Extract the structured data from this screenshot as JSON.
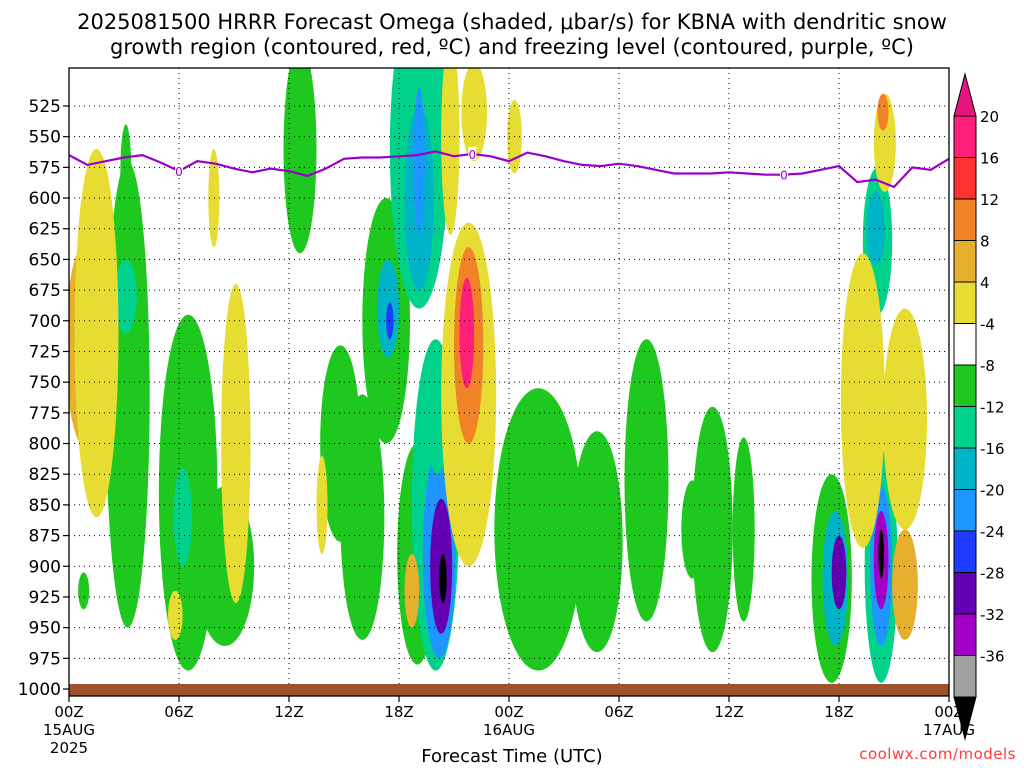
{
  "title_line1": "2025081500 HRRR Forecast Omega (shaded, μbar/s) for KBNA with dendritic snow",
  "title_line2": "growth region (contoured, red, ºC) and freezing level (contoured, purple, ºC)",
  "watermark": "coolwx.com/models",
  "chart_data": {
    "type": "heatmap",
    "xlabel": "Forecast Time (UTC)",
    "ylabel": "",
    "x_hours": [
      0,
      48
    ],
    "x_ticks": [
      {
        "h": 0,
        "label": "00Z",
        "sub": "15AUG",
        "sub2": "2025"
      },
      {
        "h": 6,
        "label": "06Z"
      },
      {
        "h": 12,
        "label": "12Z"
      },
      {
        "h": 18,
        "label": "18Z"
      },
      {
        "h": 24,
        "label": "00Z",
        "sub": "16AUG"
      },
      {
        "h": 30,
        "label": "06Z"
      },
      {
        "h": 36,
        "label": "12Z"
      },
      {
        "h": 42,
        "label": "18Z"
      },
      {
        "h": 48,
        "label": "00Z",
        "sub": "17AUG"
      }
    ],
    "y_levels_hPa": [
      525,
      550,
      575,
      600,
      625,
      650,
      675,
      700,
      725,
      750,
      775,
      800,
      825,
      850,
      875,
      900,
      925,
      950,
      975,
      1000
    ],
    "y_range_hPa": [
      1000,
      500
    ],
    "grid": true,
    "colorbar": {
      "labels": [
        "20",
        "16",
        "12",
        "8",
        "4",
        "-4",
        "-8",
        "-12",
        "-16",
        "-20",
        "-24",
        "-28",
        "-32",
        "-36"
      ],
      "colors": [
        "#ff1e78",
        "#ff3232",
        "#f08228",
        "#e6af2d",
        "#e6dc32",
        "#ffffff",
        "#1ec81e",
        "#00d28c",
        "#00b4c8",
        "#1e96ff",
        "#1e3cff",
        "#6400b4",
        "#a000c8",
        "#a0a0a0"
      ]
    },
    "freezing_level_label": "0",
    "freezing_level": {
      "hours": [
        0,
        1,
        2,
        3,
        4,
        5,
        6,
        7,
        8,
        9,
        10,
        11,
        12,
        13,
        14,
        15,
        16,
        17,
        18,
        19,
        20,
        21,
        22,
        23,
        24,
        25,
        26,
        27,
        28,
        29,
        30,
        31,
        32,
        33,
        34,
        35,
        36,
        37,
        38,
        39,
        40,
        41,
        42,
        43,
        44,
        45,
        46,
        47,
        48
      ],
      "hPa": [
        565,
        573,
        570,
        567,
        565,
        571,
        578,
        570,
        572,
        576,
        579,
        576,
        578,
        582,
        576,
        568,
        567,
        567,
        566,
        565,
        562,
        566,
        564,
        566,
        570,
        563,
        566,
        570,
        573,
        574,
        572,
        574,
        577,
        580,
        580,
        580,
        579,
        580,
        581,
        581,
        580,
        577,
        574,
        587,
        585,
        591,
        575,
        577,
        568
      ]
    },
    "ground_level_hPa": 1000,
    "omega_cells": [
      {
        "h": 1.0,
        "p": 720,
        "dh": 1.2,
        "dp": 170,
        "v": 10
      },
      {
        "h": 1.0,
        "p": 700,
        "dh": 0.6,
        "dp": 60,
        "v": 18
      },
      {
        "h": 0.8,
        "p": 920,
        "dh": 0.3,
        "dp": 30,
        "v": -6
      },
      {
        "h": 3.2,
        "p": 760,
        "dh": 1.2,
        "dp": 380,
        "v": -6
      },
      {
        "h": 3.1,
        "p": 680,
        "dh": 0.6,
        "dp": 60,
        "v": -10
      },
      {
        "h": 3.1,
        "p": 580,
        "dh": 0.3,
        "dp": 80,
        "v": -6
      },
      {
        "h": 6.5,
        "p": 840,
        "dh": 1.6,
        "dp": 290,
        "v": -6
      },
      {
        "h": 6.2,
        "p": 860,
        "dh": 0.5,
        "dp": 80,
        "v": -10
      },
      {
        "h": 8.5,
        "p": 900,
        "dh": 1.6,
        "dp": 130,
        "v": -6
      },
      {
        "h": 1.5,
        "p": 710,
        "dh": 1.2,
        "dp": 300,
        "v": 6
      },
      {
        "h": 5.8,
        "p": 940,
        "dh": 0.4,
        "dp": 40,
        "v": 6
      },
      {
        "h": 9.1,
        "p": 800,
        "dh": 0.8,
        "dp": 260,
        "v": 6
      },
      {
        "h": 12.6,
        "p": 560,
        "dh": 0.9,
        "dp": 170,
        "v": -6
      },
      {
        "h": 14.8,
        "p": 800,
        "dh": 1.1,
        "dp": 160,
        "v": -6
      },
      {
        "h": 17.3,
        "p": 700,
        "dh": 1.3,
        "dp": 200,
        "v": -6
      },
      {
        "h": 17.4,
        "p": 690,
        "dh": 0.6,
        "dp": 80,
        "v": -14
      },
      {
        "h": 17.5,
        "p": 700,
        "dh": 0.2,
        "dp": 30,
        "v": -22
      },
      {
        "h": 16.0,
        "p": 860,
        "dh": 1.2,
        "dp": 200,
        "v": -6
      },
      {
        "h": 19.0,
        "p": 890,
        "dh": 1.1,
        "dp": 180,
        "v": -6
      },
      {
        "h": 20.0,
        "p": 850,
        "dh": 1.3,
        "dp": 270,
        "v": -8
      },
      {
        "h": 20.2,
        "p": 890,
        "dh": 0.9,
        "dp": 170,
        "v": -16
      },
      {
        "h": 20.3,
        "p": 900,
        "dh": 0.6,
        "dp": 110,
        "v": -26
      },
      {
        "h": 20.4,
        "p": 910,
        "dh": 0.2,
        "dp": 40,
        "v": -36
      },
      {
        "h": 19.1,
        "p": 560,
        "dh": 1.6,
        "dp": 260,
        "v": -10
      },
      {
        "h": 19.1,
        "p": 600,
        "dh": 0.8,
        "dp": 150,
        "v": -14
      },
      {
        "h": 19.1,
        "p": 570,
        "dh": 0.3,
        "dp": 120,
        "v": -18
      },
      {
        "h": 20.1,
        "p": 780,
        "dh": 0.6,
        "dp": 90,
        "v": -10
      },
      {
        "h": 21.8,
        "p": 760,
        "dh": 1.5,
        "dp": 280,
        "v": 6
      },
      {
        "h": 21.8,
        "p": 720,
        "dh": 0.8,
        "dp": 160,
        "v": 14
      },
      {
        "h": 21.7,
        "p": 710,
        "dh": 0.4,
        "dp": 90,
        "v": 20
      },
      {
        "h": 18.7,
        "p": 920,
        "dh": 0.4,
        "dp": 60,
        "v": 8
      },
      {
        "h": 22.1,
        "p": 530,
        "dh": 0.7,
        "dp": 80,
        "v": 6
      },
      {
        "h": 24.3,
        "p": 550,
        "dh": 0.4,
        "dp": 60,
        "v": 6
      },
      {
        "h": 25.6,
        "p": 870,
        "dh": 2.4,
        "dp": 230,
        "v": -6
      },
      {
        "h": 28.8,
        "p": 880,
        "dh": 1.4,
        "dp": 180,
        "v": -6
      },
      {
        "h": 31.5,
        "p": 830,
        "dh": 1.2,
        "dp": 230,
        "v": -6
      },
      {
        "h": 35.1,
        "p": 870,
        "dh": 1.1,
        "dp": 200,
        "v": -6
      },
      {
        "h": 34.0,
        "p": 870,
        "dh": 0.6,
        "dp": 80,
        "v": -6
      },
      {
        "h": 36.8,
        "p": 870,
        "dh": 0.6,
        "dp": 150,
        "v": -6
      },
      {
        "h": 41.6,
        "p": 910,
        "dh": 1.1,
        "dp": 170,
        "v": -6
      },
      {
        "h": 41.8,
        "p": 910,
        "dh": 0.7,
        "dp": 110,
        "v": -14
      },
      {
        "h": 42.0,
        "p": 905,
        "dh": 0.4,
        "dp": 60,
        "v": -26
      },
      {
        "h": 44.3,
        "p": 900,
        "dh": 0.9,
        "dp": 190,
        "v": -8
      },
      {
        "h": 44.3,
        "p": 900,
        "dh": 0.6,
        "dp": 130,
        "v": -16
      },
      {
        "h": 44.3,
        "p": 895,
        "dh": 0.4,
        "dp": 80,
        "v": -28
      },
      {
        "h": 44.3,
        "p": 890,
        "dh": 0.15,
        "dp": 40,
        "v": -36
      },
      {
        "h": 44.1,
        "p": 635,
        "dh": 0.8,
        "dp": 120,
        "v": -8
      },
      {
        "h": 44.0,
        "p": 625,
        "dh": 0.5,
        "dp": 60,
        "v": -14
      },
      {
        "h": 43.3,
        "p": 765,
        "dh": 1.2,
        "dp": 240,
        "v": 6
      },
      {
        "h": 45.6,
        "p": 780,
        "dh": 1.2,
        "dp": 180,
        "v": 6
      },
      {
        "h": 45.6,
        "p": 915,
        "dh": 0.7,
        "dp": 90,
        "v": 8
      },
      {
        "h": 44.5,
        "p": 555,
        "dh": 0.6,
        "dp": 80,
        "v": 6
      },
      {
        "h": 44.4,
        "p": 530,
        "dh": 0.3,
        "dp": 30,
        "v": 14
      },
      {
        "h": 7.9,
        "p": 600,
        "dh": 0.3,
        "dp": 80,
        "v": 6
      },
      {
        "h": 13.8,
        "p": 850,
        "dh": 0.3,
        "dp": 80,
        "v": 6
      },
      {
        "h": 20.8,
        "p": 550,
        "dh": 0.5,
        "dp": 160,
        "v": 6
      }
    ]
  }
}
